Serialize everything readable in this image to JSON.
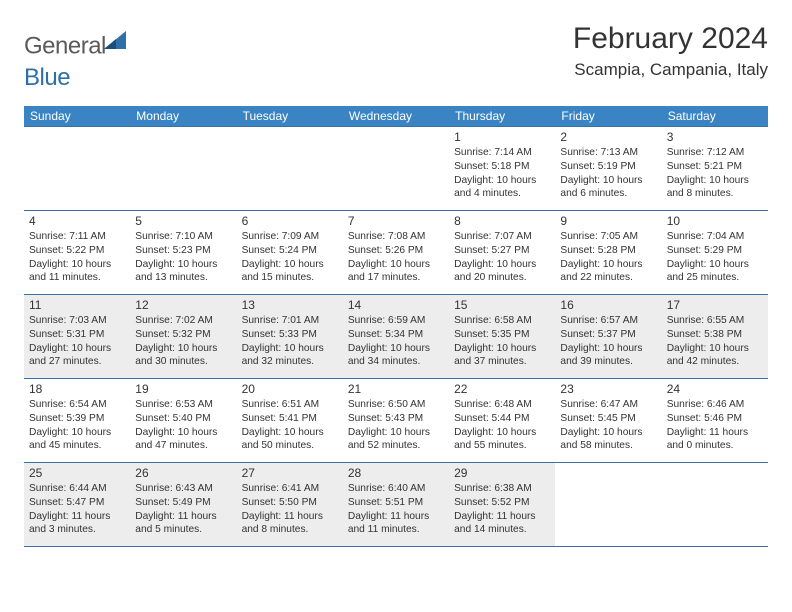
{
  "logo": {
    "text1": "General",
    "text2": "Blue"
  },
  "title": "February 2024",
  "location": "Scampia, Campania, Italy",
  "colors": {
    "header_bg": "#3a84c4",
    "header_text": "#ffffff",
    "border": "#3a6fa0",
    "shade_bg": "#ededed",
    "text": "#333333",
    "logo_gray": "#5a5a5a",
    "logo_blue": "#2f6fa7"
  },
  "day_headers": [
    "Sunday",
    "Monday",
    "Tuesday",
    "Wednesday",
    "Thursday",
    "Friday",
    "Saturday"
  ],
  "weeks": [
    [
      null,
      null,
      null,
      null,
      {
        "n": "1",
        "sr": "7:14 AM",
        "ss": "5:18 PM",
        "dl": "10 hours and 4 minutes."
      },
      {
        "n": "2",
        "sr": "7:13 AM",
        "ss": "5:19 PM",
        "dl": "10 hours and 6 minutes."
      },
      {
        "n": "3",
        "sr": "7:12 AM",
        "ss": "5:21 PM",
        "dl": "10 hours and 8 minutes."
      }
    ],
    [
      {
        "n": "4",
        "sr": "7:11 AM",
        "ss": "5:22 PM",
        "dl": "10 hours and 11 minutes."
      },
      {
        "n": "5",
        "sr": "7:10 AM",
        "ss": "5:23 PM",
        "dl": "10 hours and 13 minutes."
      },
      {
        "n": "6",
        "sr": "7:09 AM",
        "ss": "5:24 PM",
        "dl": "10 hours and 15 minutes."
      },
      {
        "n": "7",
        "sr": "7:08 AM",
        "ss": "5:26 PM",
        "dl": "10 hours and 17 minutes."
      },
      {
        "n": "8",
        "sr": "7:07 AM",
        "ss": "5:27 PM",
        "dl": "10 hours and 20 minutes."
      },
      {
        "n": "9",
        "sr": "7:05 AM",
        "ss": "5:28 PM",
        "dl": "10 hours and 22 minutes."
      },
      {
        "n": "10",
        "sr": "7:04 AM",
        "ss": "5:29 PM",
        "dl": "10 hours and 25 minutes."
      }
    ],
    [
      {
        "n": "11",
        "sr": "7:03 AM",
        "ss": "5:31 PM",
        "dl": "10 hours and 27 minutes."
      },
      {
        "n": "12",
        "sr": "7:02 AM",
        "ss": "5:32 PM",
        "dl": "10 hours and 30 minutes."
      },
      {
        "n": "13",
        "sr": "7:01 AM",
        "ss": "5:33 PM",
        "dl": "10 hours and 32 minutes."
      },
      {
        "n": "14",
        "sr": "6:59 AM",
        "ss": "5:34 PM",
        "dl": "10 hours and 34 minutes."
      },
      {
        "n": "15",
        "sr": "6:58 AM",
        "ss": "5:35 PM",
        "dl": "10 hours and 37 minutes."
      },
      {
        "n": "16",
        "sr": "6:57 AM",
        "ss": "5:37 PM",
        "dl": "10 hours and 39 minutes."
      },
      {
        "n": "17",
        "sr": "6:55 AM",
        "ss": "5:38 PM",
        "dl": "10 hours and 42 minutes."
      }
    ],
    [
      {
        "n": "18",
        "sr": "6:54 AM",
        "ss": "5:39 PM",
        "dl": "10 hours and 45 minutes."
      },
      {
        "n": "19",
        "sr": "6:53 AM",
        "ss": "5:40 PM",
        "dl": "10 hours and 47 minutes."
      },
      {
        "n": "20",
        "sr": "6:51 AM",
        "ss": "5:41 PM",
        "dl": "10 hours and 50 minutes."
      },
      {
        "n": "21",
        "sr": "6:50 AM",
        "ss": "5:43 PM",
        "dl": "10 hours and 52 minutes."
      },
      {
        "n": "22",
        "sr": "6:48 AM",
        "ss": "5:44 PM",
        "dl": "10 hours and 55 minutes."
      },
      {
        "n": "23",
        "sr": "6:47 AM",
        "ss": "5:45 PM",
        "dl": "10 hours and 58 minutes."
      },
      {
        "n": "24",
        "sr": "6:46 AM",
        "ss": "5:46 PM",
        "dl": "11 hours and 0 minutes."
      }
    ],
    [
      {
        "n": "25",
        "sr": "6:44 AM",
        "ss": "5:47 PM",
        "dl": "11 hours and 3 minutes."
      },
      {
        "n": "26",
        "sr": "6:43 AM",
        "ss": "5:49 PM",
        "dl": "11 hours and 5 minutes."
      },
      {
        "n": "27",
        "sr": "6:41 AM",
        "ss": "5:50 PM",
        "dl": "11 hours and 8 minutes."
      },
      {
        "n": "28",
        "sr": "6:40 AM",
        "ss": "5:51 PM",
        "dl": "11 hours and 11 minutes."
      },
      {
        "n": "29",
        "sr": "6:38 AM",
        "ss": "5:52 PM",
        "dl": "11 hours and 14 minutes."
      },
      null,
      null
    ]
  ],
  "labels": {
    "sunrise": "Sunrise: ",
    "sunset": "Sunset: ",
    "daylight": "Daylight: "
  },
  "shaded_rows": [
    2,
    4
  ]
}
